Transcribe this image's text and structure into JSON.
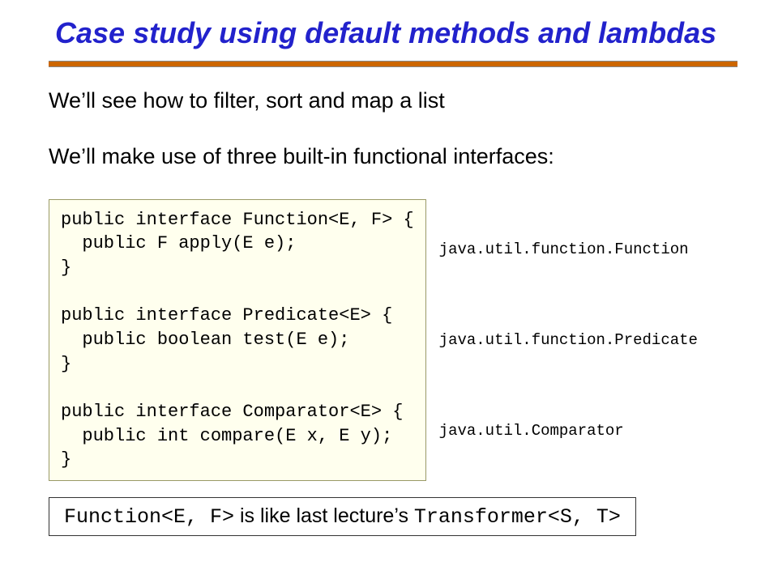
{
  "title": "Case study using default methods and lambdas",
  "paragraphs": {
    "p1": "We’ll see how to filter, sort and map a list",
    "p2": "We’ll make use of three built-in functional interfaces:"
  },
  "code": {
    "block": "public interface Function<E, F> {\n  public F apply(E e);\n}\n\npublic interface Predicate<E> {\n  public boolean test(E e);\n}\n\npublic interface Comparator<E> {\n  public int compare(E x, E y);\n}",
    "packages": {
      "function": "java.util.function.Function",
      "predicate": "java.util.function.Predicate",
      "comparator": "java.util.Comparator"
    }
  },
  "footnote": {
    "mono1": "Function<E, F>",
    "mid": " is like last lecture’s ",
    "mono2": "Transformer<S, T>"
  },
  "style": {
    "title_color": "#2222cc",
    "rule_color": "#cc6600",
    "code_bg": "#ffffee",
    "code_border": "#999966",
    "footnote_border": "#333333",
    "text_color": "#000000",
    "title_fontsize": 36,
    "body_fontsize": 27,
    "code_fontsize": 22,
    "pkg_fontsize": 19,
    "footnote_fontsize": 25
  }
}
